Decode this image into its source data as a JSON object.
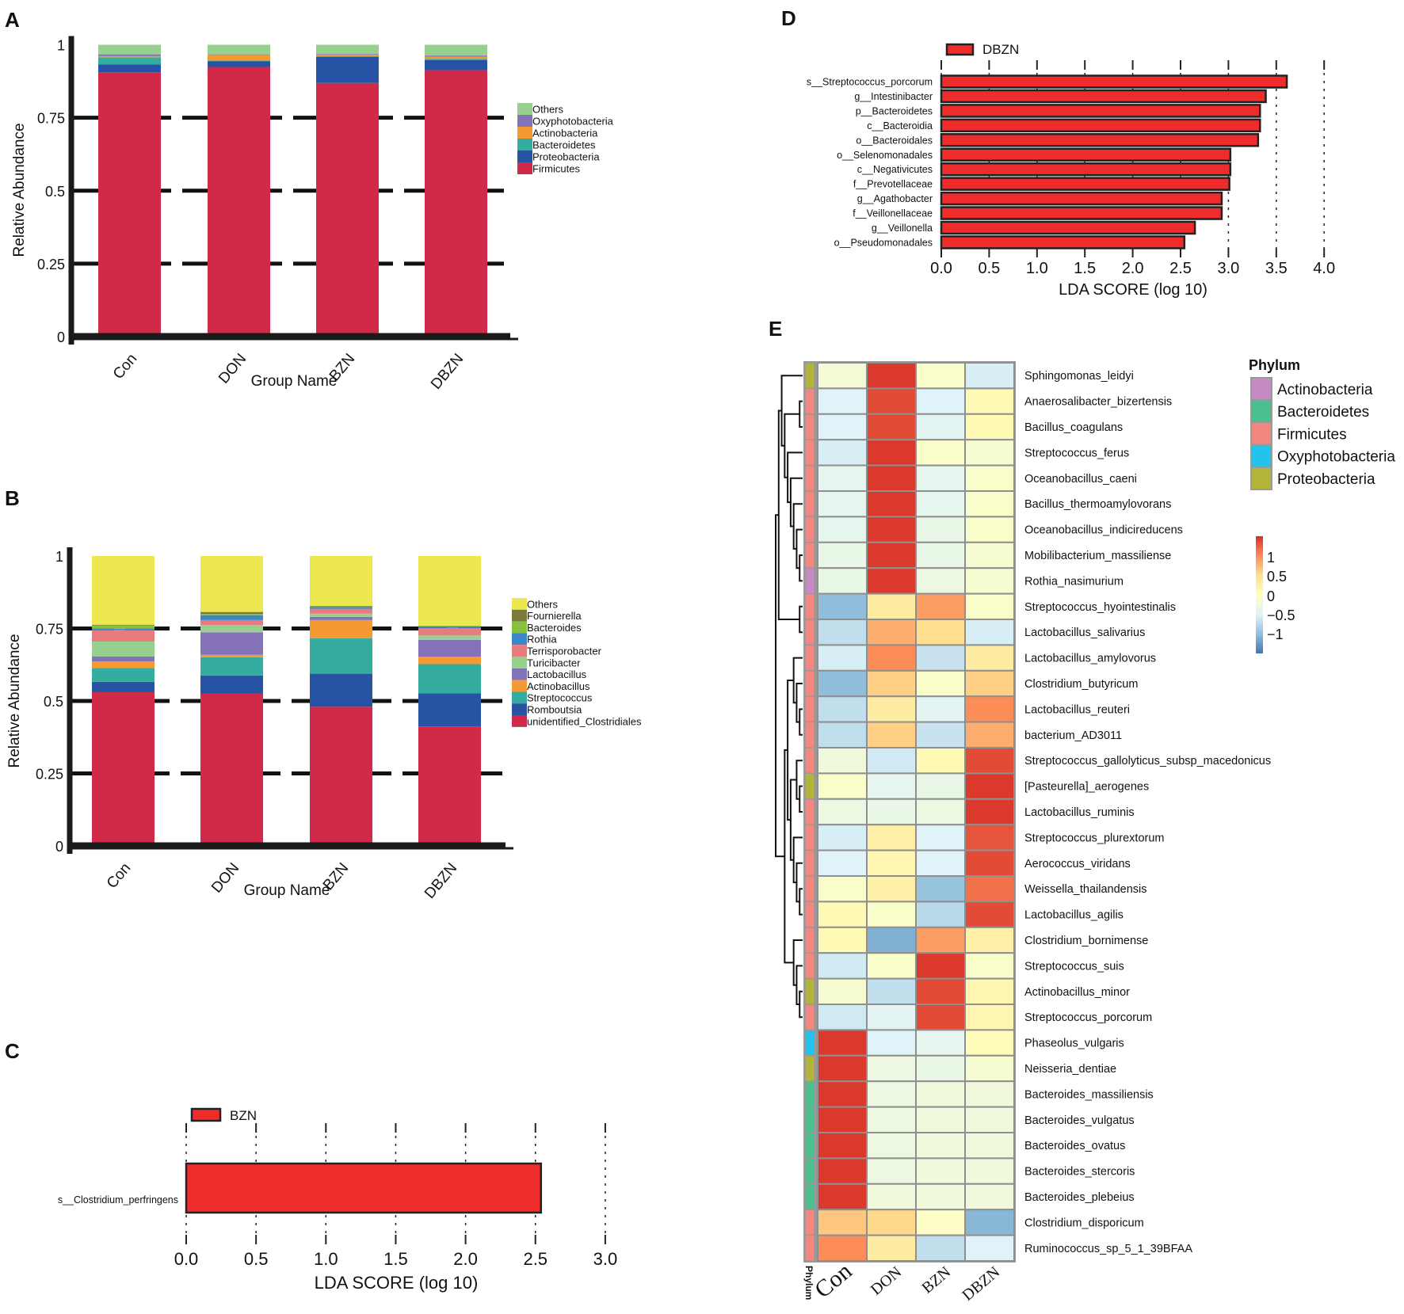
{
  "panel_labels": [
    "A",
    "B",
    "C",
    "D",
    "E"
  ],
  "chart_data": [
    {
      "panel": "A",
      "type": "bar",
      "stacked": true,
      "categories": [
        "Con",
        "DON",
        "BZN",
        "DBZN"
      ],
      "xlabel": "Group Name",
      "ylabel": "Relative Abundance",
      "ylim": [
        0,
        1
      ],
      "yticks": [
        "0",
        "0.25",
        "0.5",
        "0.75",
        "1"
      ],
      "grid": "dashed horizontal at 0.25, 0.5, 0.75",
      "legend_position": "right",
      "series": [
        {
          "name": "Firmicutes",
          "color": "#d12a48",
          "values": [
            0.906,
            0.924,
            0.869,
            0.913
          ]
        },
        {
          "name": "Proteobacteria",
          "color": "#2753a5",
          "values": [
            0.027,
            0.019,
            0.089,
            0.035
          ]
        },
        {
          "name": "Bacteroidetes",
          "color": "#35aca0",
          "values": [
            0.024,
            0.003,
            0.003,
            0.004
          ]
        },
        {
          "name": "Actinobacteria",
          "color": "#f59a32",
          "values": [
            0.004,
            0.019,
            0.004,
            0.007
          ]
        },
        {
          "name": "Oxyphotobacteria",
          "color": "#8672b8",
          "values": [
            0.006,
            0.002,
            0.003,
            0.004
          ]
        },
        {
          "name": "Others",
          "color": "#97d08f",
          "values": [
            0.033,
            0.033,
            0.032,
            0.037
          ]
        }
      ]
    },
    {
      "panel": "B",
      "type": "bar",
      "stacked": true,
      "categories": [
        "Con",
        "DON",
        "BZN",
        "DBZN"
      ],
      "xlabel": "Group Name",
      "ylabel": "Relative Abundance",
      "ylim": [
        0,
        1
      ],
      "yticks": [
        "0",
        "0.25",
        "0.5",
        "0.75",
        "1"
      ],
      "grid": "dashed horizontal at 0.25, 0.5, 0.75",
      "legend_position": "right",
      "series": [
        {
          "name": "unidentified_Clostridiales",
          "color": "#d12a48",
          "values": [
            0.53,
            0.526,
            0.48,
            0.412
          ]
        },
        {
          "name": "Romboutsia",
          "color": "#2753a5",
          "values": [
            0.036,
            0.062,
            0.114,
            0.114
          ]
        },
        {
          "name": "Streptococcus",
          "color": "#35aca0",
          "values": [
            0.048,
            0.063,
            0.122,
            0.101
          ]
        },
        {
          "name": "Actinobacillus",
          "color": "#f59a32",
          "values": [
            0.022,
            0.008,
            0.063,
            0.026
          ]
        },
        {
          "name": "Lactobacillus",
          "color": "#8672b8",
          "values": [
            0.017,
            0.078,
            0.011,
            0.058
          ]
        },
        {
          "name": "Turicibacter",
          "color": "#97d08f",
          "values": [
            0.052,
            0.025,
            0.011,
            0.015
          ]
        },
        {
          "name": "Terrisporobacter",
          "color": "#e87b7d",
          "values": [
            0.04,
            0.017,
            0.017,
            0.026
          ]
        },
        {
          "name": "Rothia",
          "color": "#3d86c8",
          "values": [
            0.004,
            0.017,
            0.006,
            0.005
          ]
        },
        {
          "name": "Bacteroides",
          "color": "#86c140",
          "values": [
            0.012,
            0.004,
            0.002,
            0.002
          ]
        },
        {
          "name": "Fournierella",
          "color": "#7a7a3a",
          "values": [
            0.002,
            0.007,
            0.002,
            0.001
          ]
        },
        {
          "name": "Others",
          "color": "#ede84f",
          "values": [
            0.237,
            0.193,
            0.172,
            0.24
          ]
        }
      ]
    },
    {
      "panel": "C",
      "type": "bar",
      "orientation": "horizontal",
      "legend": "BZN",
      "legend_color": "#ee2c2c",
      "categories": [
        "s__Clostridium_perfringens"
      ],
      "values": [
        2.54
      ],
      "xlabel": "LDA SCORE (log 10)",
      "xlim": [
        0,
        3.0
      ],
      "xticks": [
        "0.0",
        "0.5",
        "1.0",
        "1.5",
        "2.0",
        "2.5",
        "3.0"
      ],
      "legend_position": "top-left"
    },
    {
      "panel": "D",
      "type": "bar",
      "orientation": "horizontal",
      "legend": "DBZN",
      "legend_color": "#ee2c2c",
      "categories": [
        "s__Streptococcus_porcorum",
        "g__Intestinibacter",
        "p__Bacteroidetes",
        "c__Bacteroidia",
        "o__Bacteroidales",
        "o__Selenomonadales",
        "c__Negativicutes",
        "f__Prevotellaceae",
        "g__Agathobacter",
        "f__Veillonellaceae",
        "g__Veillonella",
        "o__Pseudomonadales"
      ],
      "values": [
        3.61,
        3.39,
        3.33,
        3.33,
        3.31,
        3.02,
        3.02,
        3.01,
        2.93,
        2.93,
        2.65,
        2.54
      ],
      "xlabel": "LDA SCORE (log 10)",
      "xlim": [
        0,
        4.0
      ],
      "xticks": [
        "0.0",
        "0.5",
        "1.0",
        "1.5",
        "2.0",
        "2.5",
        "3.0",
        "3.5",
        "4.0"
      ],
      "legend_position": "top-left"
    },
    {
      "panel": "E",
      "type": "heatmap",
      "columns": [
        "Con",
        "DON",
        "BZN",
        "DBZN"
      ],
      "annotation_label": "Phylum",
      "color_range": [
        -1.5,
        1.5
      ],
      "colorscale": [
        "#4575b4",
        "#91bfdb",
        "#e0f3f8",
        "#ffffbf",
        "#fee090",
        "#fc8d59",
        "#d73027"
      ],
      "colorbar_ticks": [
        "1",
        "0.5",
        "0",
        "−0.5",
        "−1"
      ],
      "phylum_legend": [
        {
          "name": "Actinobacteria",
          "color": "#c68bc4"
        },
        {
          "name": "Bacteroidetes",
          "color": "#4dbf8f"
        },
        {
          "name": "Firmicutes",
          "color": "#f4877f"
        },
        {
          "name": "Oxyphotobacteria",
          "color": "#22c3ec"
        },
        {
          "name": "Proteobacteria",
          "color": "#b3b43a"
        }
      ],
      "rows": [
        {
          "name": "Sphingomonas_leidyi",
          "phylum": "Proteobacteria",
          "values": [
            -0.2,
            1.45,
            -0.1,
            -0.55
          ]
        },
        {
          "name": "Anaerosalibacter_bizertensis",
          "phylum": "Firmicutes",
          "values": [
            -0.5,
            1.35,
            -0.5,
            0.1
          ]
        },
        {
          "name": "Bacillus_coagulans",
          "phylum": "Firmicutes",
          "values": [
            -0.5,
            1.35,
            -0.45,
            0.1
          ]
        },
        {
          "name": "Streptococcus_ferus",
          "phylum": "Firmicutes",
          "values": [
            -0.55,
            1.45,
            -0.1,
            -0.15
          ]
        },
        {
          "name": "Oceanobacillus_caeni",
          "phylum": "Firmicutes",
          "values": [
            -0.4,
            1.45,
            -0.4,
            -0.1
          ]
        },
        {
          "name": "Bacillus_thermoamylovorans",
          "phylum": "Firmicutes",
          "values": [
            -0.4,
            1.45,
            -0.4,
            -0.1
          ]
        },
        {
          "name": "Oceanobacillus_indicireducens",
          "phylum": "Firmicutes",
          "values": [
            -0.4,
            1.45,
            -0.35,
            -0.1
          ]
        },
        {
          "name": "Mobilibacterium_massiliense",
          "phylum": "Firmicutes",
          "values": [
            -0.35,
            1.45,
            -0.35,
            -0.15
          ]
        },
        {
          "name": "Rothia_nasimurium",
          "phylum": "Actinobacteria",
          "values": [
            -0.35,
            1.45,
            -0.3,
            -0.15
          ]
        },
        {
          "name": "Streptococcus_hyointestinalis",
          "phylum": "Firmicutes",
          "values": [
            -1.0,
            0.3,
            0.9,
            -0.1
          ]
        },
        {
          "name": "Lactobacillus_salivarius",
          "phylum": "Firmicutes",
          "values": [
            -0.7,
            0.8,
            0.5,
            -0.55
          ]
        },
        {
          "name": "Lactobacillus_amylovorus",
          "phylum": "Firmicutes",
          "values": [
            -0.55,
            1.0,
            -0.65,
            0.3
          ]
        },
        {
          "name": "Clostridium_butyricum",
          "phylum": "Firmicutes",
          "values": [
            -1.0,
            0.6,
            -0.1,
            0.6
          ]
        },
        {
          "name": "Lactobacillus_reuteri",
          "phylum": "Firmicutes",
          "values": [
            -0.7,
            0.3,
            -0.45,
            1.0
          ]
        },
        {
          "name": "bacterium_AD3011",
          "phylum": "Firmicutes",
          "values": [
            -0.7,
            0.6,
            -0.65,
            0.8
          ]
        },
        {
          "name": "Streptococcus_gallolyticus_subsp_macedonicus",
          "phylum": "Firmicutes",
          "values": [
            -0.25,
            -0.6,
            0.1,
            1.35
          ]
        },
        {
          "name": "[Pasteurella]_aerogenes",
          "phylum": "Proteobacteria",
          "values": [
            -0.1,
            -0.4,
            -0.35,
            1.45
          ]
        },
        {
          "name": "Lactobacillus_ruminis",
          "phylum": "Firmicutes",
          "values": [
            -0.3,
            -0.35,
            -0.3,
            1.45
          ]
        },
        {
          "name": "Streptococcus_plurextorum",
          "phylum": "Firmicutes",
          "values": [
            -0.55,
            0.25,
            -0.5,
            1.3
          ]
        },
        {
          "name": "Aerococcus_viridans",
          "phylum": "Firmicutes",
          "values": [
            -0.5,
            0.15,
            -0.5,
            1.35
          ]
        },
        {
          "name": "Weissella_thailandensis",
          "phylum": "Firmicutes",
          "values": [
            -0.1,
            0.25,
            -0.95,
            1.15
          ]
        },
        {
          "name": "Lactobacillus_agilis",
          "phylum": "Firmicutes",
          "values": [
            0.1,
            -0.1,
            -0.75,
            1.35
          ]
        },
        {
          "name": "Clostridium_bornimense",
          "phylum": "Firmicutes",
          "values": [
            0.1,
            -1.1,
            0.9,
            0.25
          ]
        },
        {
          "name": "Streptococcus_suis",
          "phylum": "Firmicutes",
          "values": [
            -0.6,
            -0.1,
            1.45,
            -0.1
          ]
        },
        {
          "name": "Actinobacillus_minor",
          "phylum": "Proteobacteria",
          "values": [
            -0.15,
            -0.7,
            1.35,
            0.15
          ]
        },
        {
          "name": "Streptococcus_porcorum",
          "phylum": "Firmicutes",
          "values": [
            -0.6,
            -0.45,
            1.35,
            0.15
          ]
        },
        {
          "name": "Phaseolus_vulgaris",
          "phylum": "Oxyphotobacteria",
          "values": [
            1.45,
            -0.5,
            -0.4,
            0.05
          ]
        },
        {
          "name": "Neisseria_dentiae",
          "phylum": "Proteobacteria",
          "values": [
            1.45,
            -0.3,
            -0.35,
            -0.15
          ]
        },
        {
          "name": "Bacteroides_massiliensis",
          "phylum": "Bacteroidetes",
          "values": [
            1.45,
            -0.3,
            -0.25,
            -0.25
          ]
        },
        {
          "name": "Bacteroides_vulgatus",
          "phylum": "Bacteroidetes",
          "values": [
            1.45,
            -0.3,
            -0.25,
            -0.25
          ]
        },
        {
          "name": "Bacteroides_ovatus",
          "phylum": "Bacteroidetes",
          "values": [
            1.45,
            -0.3,
            -0.25,
            -0.25
          ]
        },
        {
          "name": "Bacteroides_stercoris",
          "phylum": "Bacteroidetes",
          "values": [
            1.45,
            -0.3,
            -0.25,
            -0.25
          ]
        },
        {
          "name": "Bacteroides_plebeius",
          "phylum": "Bacteroidetes",
          "values": [
            1.45,
            -0.25,
            -0.25,
            -0.25
          ]
        },
        {
          "name": "Clostridium_disporicum",
          "phylum": "Firmicutes",
          "values": [
            0.65,
            0.55,
            -0.05,
            -1.05
          ]
        },
        {
          "name": "Ruminococcus_sp_5_1_39BFAA",
          "phylum": "Firmicutes",
          "values": [
            1.0,
            0.3,
            -0.7,
            -0.5
          ]
        }
      ]
    }
  ]
}
